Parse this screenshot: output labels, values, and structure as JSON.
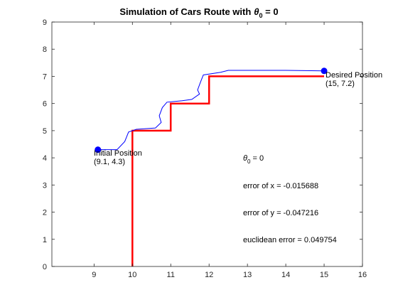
{
  "chart_data": {
    "type": "line",
    "title_main": "Simulation of Cars Route with",
    "title_theta": "θ",
    "title_sub": "0",
    "title_tail": " = 0",
    "xlim": [
      7.9,
      16
    ],
    "ylim": [
      0,
      9
    ],
    "xticks": [
      9,
      10,
      11,
      12,
      13,
      14,
      15,
      16
    ],
    "yticks": [
      0,
      1,
      2,
      3,
      4,
      5,
      6,
      7,
      8,
      9
    ],
    "grid": false,
    "colors": {
      "reference": "#ff0000",
      "route": "#0000ff",
      "axes": "#262626"
    },
    "series": [
      {
        "role": "reference-path",
        "color": "#ff0000",
        "x": [
          10,
          10,
          11,
          11,
          12,
          12,
          15
        ],
        "y": [
          0,
          5,
          5,
          6,
          6,
          7,
          7
        ]
      },
      {
        "role": "car-route",
        "color": "#0000ff",
        "x": [
          9.1,
          9.6,
          9.8,
          9.9,
          10.1,
          10.6,
          10.75,
          10.7,
          10.78,
          10.9,
          11.3,
          11.55,
          11.75,
          11.7,
          11.78,
          11.85,
          12.3,
          12.5,
          14.0,
          15.0
        ],
        "y": [
          4.3,
          4.3,
          4.6,
          4.95,
          5.05,
          5.1,
          5.3,
          5.55,
          5.85,
          6.05,
          6.1,
          6.15,
          6.35,
          6.5,
          6.8,
          7.05,
          7.15,
          7.22,
          7.22,
          7.2
        ]
      }
    ],
    "markers": [
      {
        "name": "initial",
        "x": 9.1,
        "y": 4.3,
        "label": "Initial Position",
        "coords": "(9.1, 4.3)"
      },
      {
        "name": "desired",
        "x": 15,
        "y": 7.2,
        "label": "Desired Position",
        "coords": "(15, 7.2)"
      }
    ],
    "annotations": {
      "theta_prefix": "θ",
      "theta_sub": "0",
      "theta_tail": " = 0",
      "error_x": "error of x = -0.015688",
      "error_y": "error of y = -0.047216",
      "euclidean_error": "euclidean error = 0.049754"
    }
  }
}
